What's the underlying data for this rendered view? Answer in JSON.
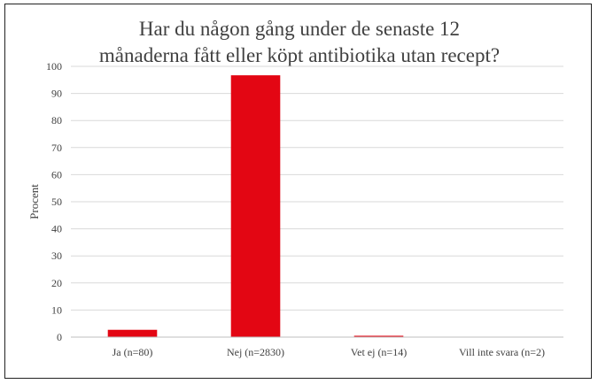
{
  "chart_data": {
    "type": "bar",
    "title_lines": [
      "Har du någon gång under de senaste 12",
      "månaderna fått eller köpt antibiotika utan recept?"
    ],
    "ylabel": "Procent",
    "xlabel": "",
    "ylim": [
      0,
      100
    ],
    "yticks": [
      "0",
      "10",
      "20",
      "30",
      "40",
      "50",
      "60",
      "70",
      "80",
      "90",
      "100"
    ],
    "categories": [
      "Ja (n=80)",
      "Nej (n=2830)",
      "Vet ej (n=14)",
      "Vill inte svara (n=2)"
    ],
    "values": [
      2.7,
      96.7,
      0.5,
      0.1
    ],
    "grid": true,
    "legend": "none",
    "colors": {
      "bar": "#e30613"
    }
  }
}
